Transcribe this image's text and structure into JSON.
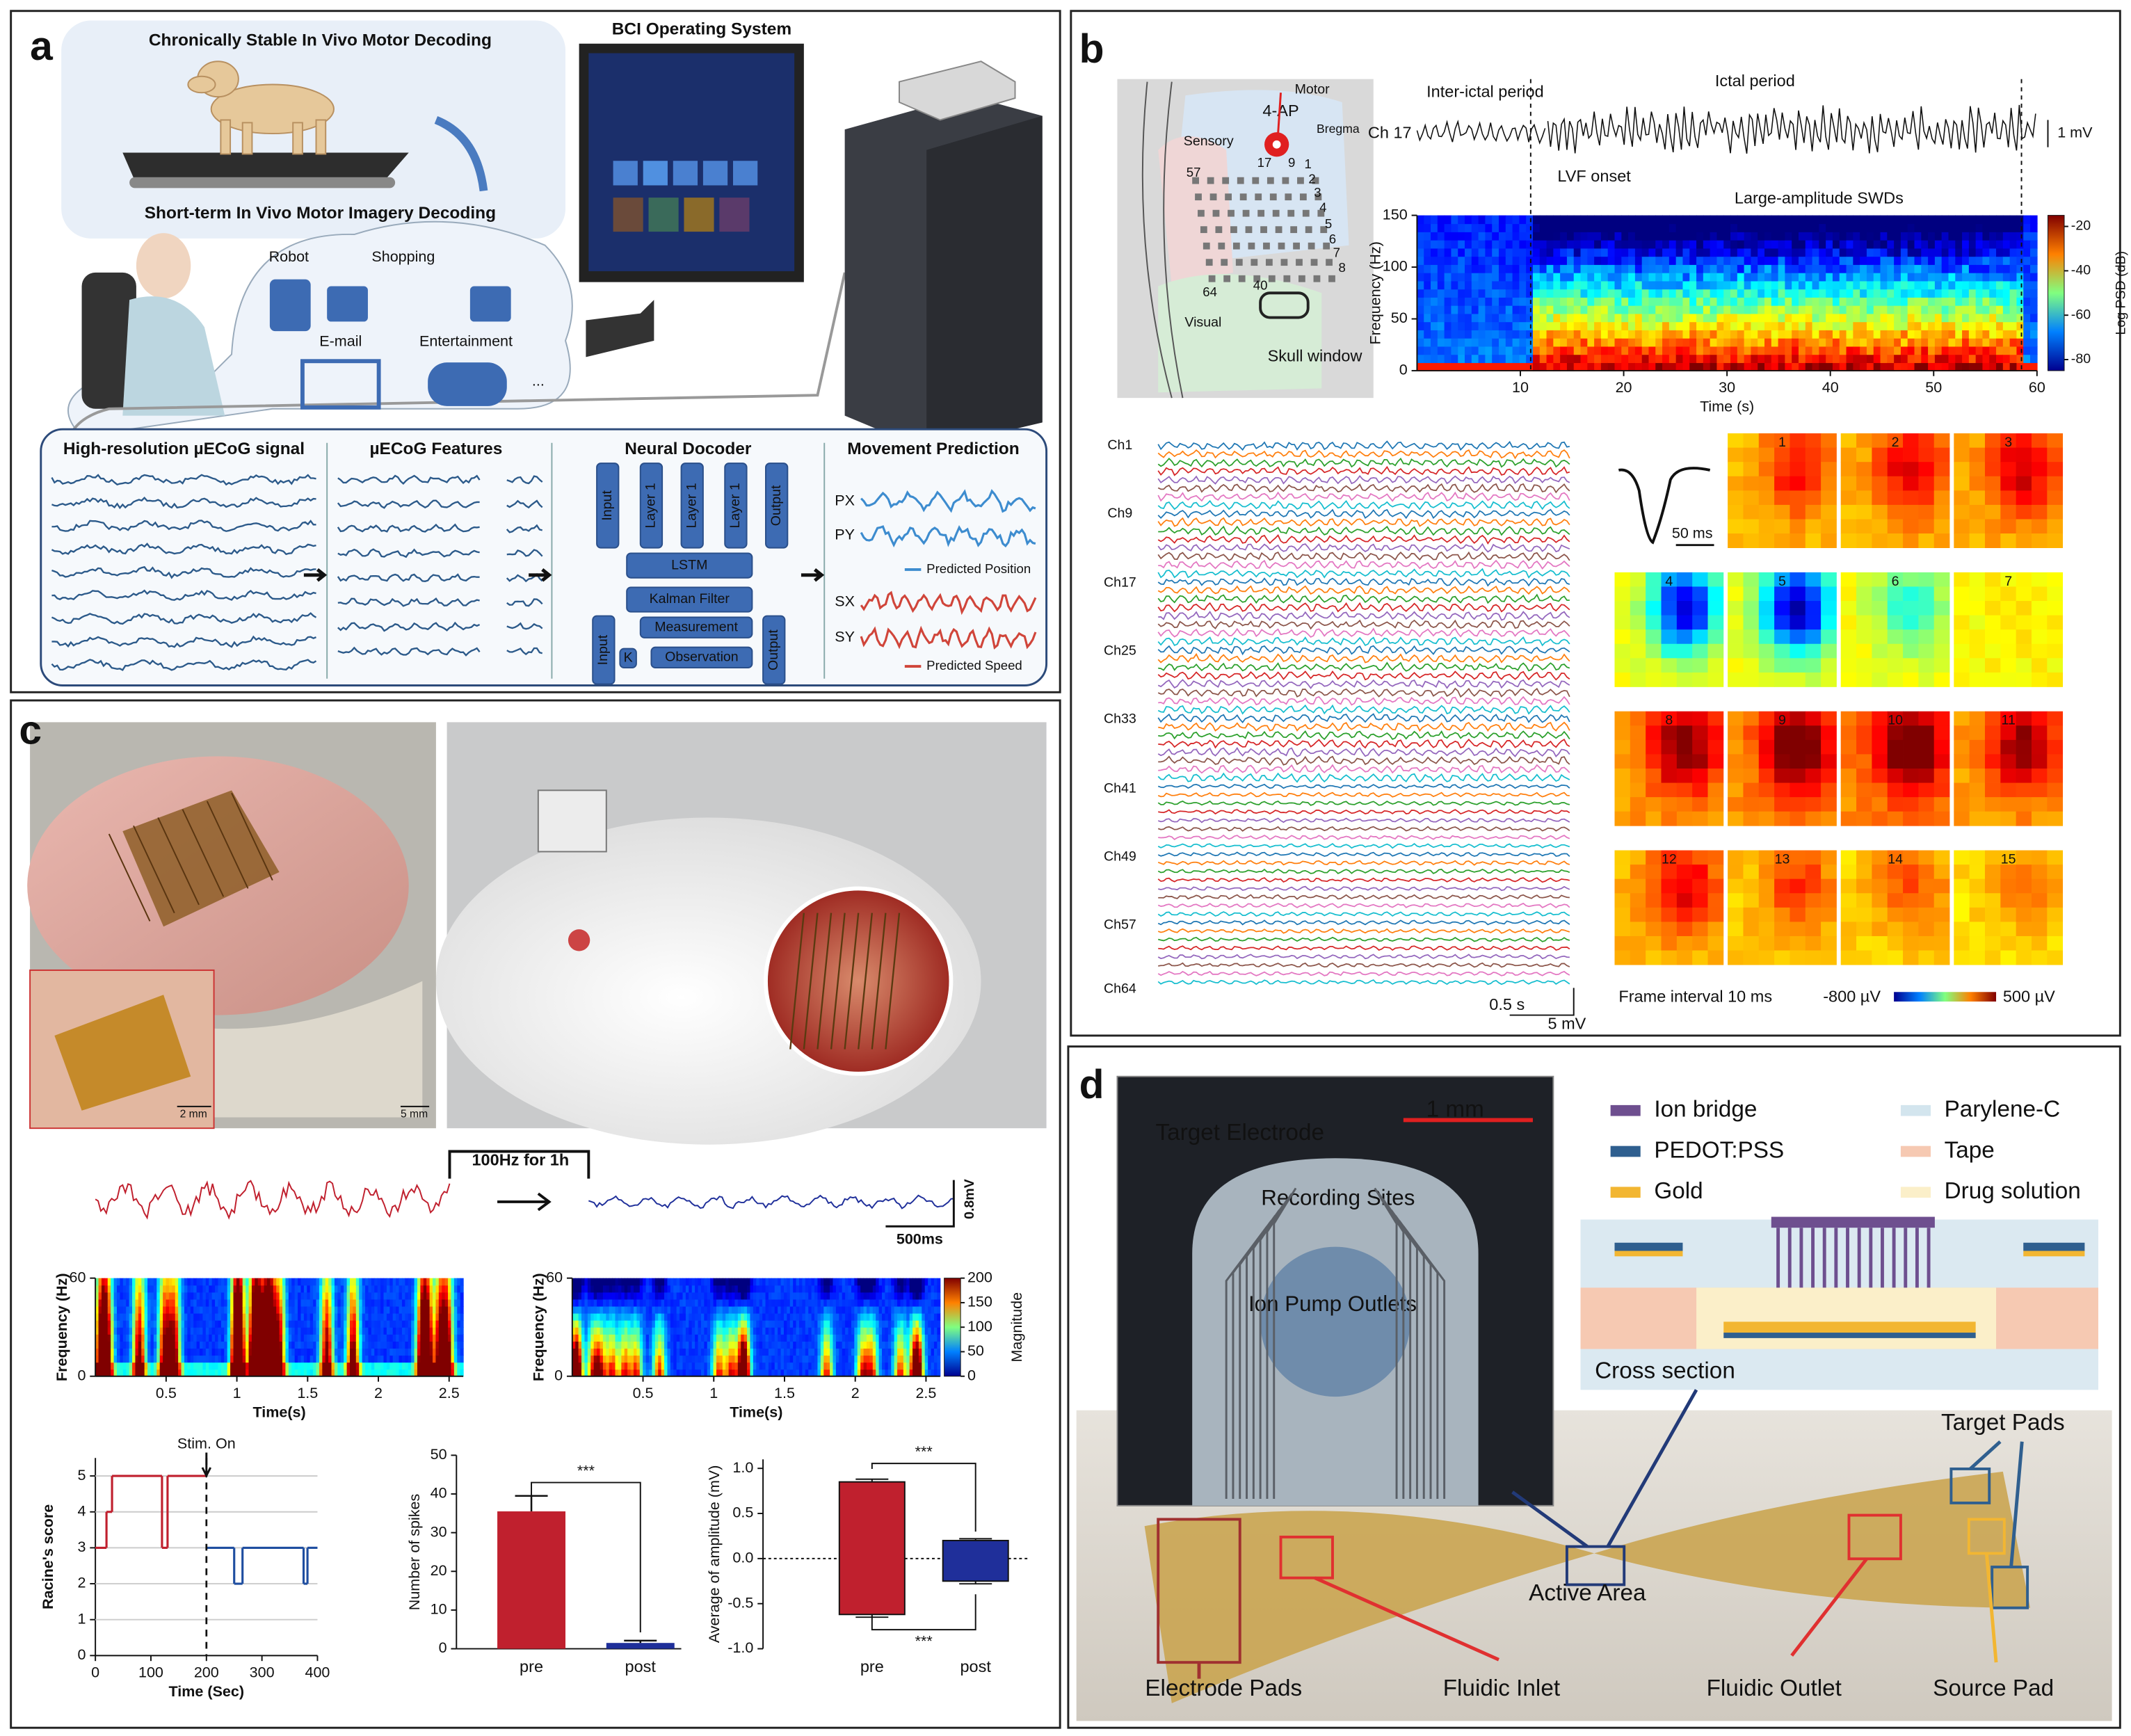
{
  "panels": {
    "a": {
      "label": "a",
      "dog_title": "Chronically Stable In Vivo Motor Decoding",
      "os_title": "BCI Operating System",
      "human_title": "Short-term In Vivo Motor Imagery Decoding",
      "apps": [
        "Robot",
        "Shopping",
        "E-mail",
        "Entertainment"
      ],
      "ellipsis": "...",
      "steps": [
        "High-resolution µECoG signal",
        "µECoG Features",
        "Neural Docoder",
        "Movement Prediction"
      ],
      "decoder": [
        "Input",
        "Layer 1",
        "Layer 1",
        "Layer 1",
        "Output",
        "LSTM",
        "Kalman Filter",
        "Input",
        "Measurement",
        "K",
        "Observation",
        "Output"
      ],
      "outputs": [
        "PX",
        "PY",
        "SX",
        "SY"
      ],
      "legend": [
        "Predicted Position",
        "Predicted Speed"
      ]
    },
    "b": {
      "label": "b",
      "map": [
        "Motor",
        "4-AP",
        "Sensory",
        "Bregma",
        "Visual",
        "Skull window"
      ],
      "electrodes": [
        "57",
        "17",
        "9",
        "1",
        "2",
        "3",
        "4",
        "5",
        "6",
        "7",
        "8",
        "64",
        "40"
      ],
      "trace": [
        "Inter-ictal period",
        "Ictal period",
        "Ch 17",
        "1 mV",
        "LVF onset",
        "Large-amplitude SWDs"
      ],
      "channels": [
        "Ch1",
        "Ch9",
        "Ch17",
        "Ch25",
        "Ch33",
        "Ch41",
        "Ch49",
        "Ch57",
        "Ch64"
      ],
      "scale": [
        "0.5 s",
        "5 mV"
      ],
      "frames": [
        "1",
        "2",
        "3",
        "4",
        "5",
        "6",
        "7",
        "8",
        "9",
        "10",
        "11",
        "12",
        "13",
        "14",
        "15"
      ],
      "waveform_scale": "50 ms",
      "frame_interval": "Frame interval 10 ms",
      "colorbar": [
        "-800 µV",
        "500 µV"
      ]
    },
    "c": {
      "label": "c",
      "scales": [
        "2 mm",
        "5 mm"
      ],
      "stim": "100Hz  for 1h",
      "trace_scale": [
        "0.8mV",
        "500ms"
      ]
    },
    "d": {
      "label": "d",
      "photo": [
        "1 mm",
        "Target Electrode",
        "Recording Sites",
        "Ion Pump Outlets"
      ],
      "legend": [
        {
          "name": "Ion bridge",
          "color": "#6e4f8f"
        },
        {
          "name": "PEDOT:PSS",
          "color": "#2f5f8f"
        },
        {
          "name": "Gold",
          "color": "#f2b632"
        },
        {
          "name": "Parylene-C",
          "color": "#d3e5ee"
        },
        {
          "name": "Tape",
          "color": "#f6c9b2"
        },
        {
          "name": "Drug solution",
          "color": "#fbefc9"
        }
      ],
      "cross_section": "Cross section",
      "callouts": [
        "Target Pads",
        "Active Area",
        "Electrode Pads",
        "Fluidic Inlet",
        "Fluidic Outlet",
        "Source Pad"
      ]
    }
  },
  "chart_data": [
    {
      "type": "heatmap",
      "xlabel": "Time (s)",
      "ylabel": "Frequency (Hz)",
      "xlim": [
        0,
        60
      ],
      "ylim": [
        0,
        150
      ],
      "xticks": [
        10,
        20,
        30,
        40,
        50,
        60
      ],
      "yticks": [
        0,
        50,
        100,
        150
      ],
      "event_times": [
        11,
        58.5
      ],
      "colorbar_label": "Log PSD (dB)",
      "clim": [
        -85,
        -15
      ],
      "cticks": [
        -20,
        -40,
        -60,
        -80
      ]
    },
    {
      "type": "heatmap",
      "xlabel": "Time(s)",
      "ylabel": "Frequency (Hz)",
      "xlim": [
        0,
        2.6
      ],
      "ylim": [
        0,
        60
      ],
      "xticks": [
        0.5,
        1,
        1.5,
        2,
        2.5
      ],
      "yticks": [
        0,
        60
      ]
    },
    {
      "type": "heatmap",
      "xlabel": "Time(s)",
      "ylabel": "Frequency (Hz)",
      "xlim": [
        0,
        2.6
      ],
      "ylim": [
        0,
        60
      ],
      "xticks": [
        0.5,
        1,
        1.5,
        2,
        2.5
      ],
      "yticks": [
        0,
        60
      ],
      "colorbar_label": "Magnitude",
      "clim": [
        0,
        200
      ],
      "cticks": [
        0,
        50,
        100,
        150,
        200
      ]
    },
    {
      "type": "step",
      "xlabel": "Time (Sec)",
      "ylabel": "Racine's score",
      "xlim": [
        0,
        400
      ],
      "ylim": [
        0,
        5.5
      ],
      "xticks": [
        0,
        100,
        200,
        300,
        400
      ],
      "yticks": [
        0,
        1,
        2,
        3,
        4,
        5
      ],
      "grid": true,
      "annotation": "Stim. On",
      "annotation_x": 200,
      "series": [
        {
          "name": "pre",
          "color": "#c0202e",
          "x": [
            0,
            20,
            30,
            120,
            130,
            200
          ],
          "values": [
            3,
            4,
            5,
            3,
            5,
            5
          ]
        },
        {
          "name": "post",
          "color": "#1f4ea0",
          "x": [
            200,
            250,
            265,
            375,
            382,
            400
          ],
          "values": [
            3,
            2,
            3,
            2,
            3,
            3
          ]
        }
      ]
    },
    {
      "type": "bar",
      "ylabel": "Number of spikes",
      "categories": [
        "pre",
        "post"
      ],
      "values": [
        35.5,
        1.5
      ],
      "errors": [
        4,
        0.6
      ],
      "colors": [
        "#c0202e",
        "#1f2f9a"
      ],
      "ylim": [
        0,
        50
      ],
      "yticks": [
        0,
        10,
        20,
        30,
        40,
        50
      ],
      "annotation": "***"
    },
    {
      "type": "box",
      "ylabel": "Average of amplitude (mV)",
      "categories": [
        "pre",
        "post"
      ],
      "colors": [
        "#c0202e",
        "#1f2f9a"
      ],
      "boxes": [
        {
          "min": -0.65,
          "q1": -0.62,
          "q3": 0.85,
          "max": 0.88
        },
        {
          "min": -0.28,
          "q1": -0.25,
          "q3": 0.2,
          "max": 0.22
        }
      ],
      "ylim": [
        -1,
        1.1
      ],
      "yticks": [
        {
          "value": -1,
          "label": "-1.0"
        },
        -0.5,
        {
          "value": 0,
          "label": "0.0"
        },
        0.5,
        {
          "value": 1,
          "label": "1.0"
        }
      ],
      "annotations": [
        "***",
        "***"
      ]
    }
  ]
}
